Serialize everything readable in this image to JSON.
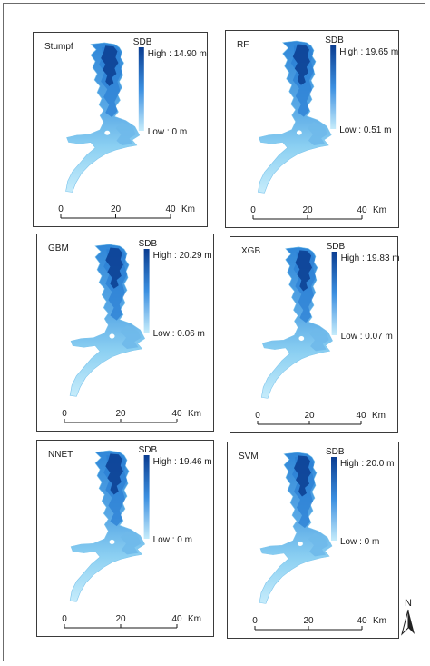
{
  "legend_title": "SDB",
  "units": "Km",
  "scale_ticks": [
    "0",
    "20",
    "40"
  ],
  "north_label": "N",
  "colors": {
    "deep": "#0a3d91",
    "mid": "#2f86d8",
    "shallow": "#8cd0f2",
    "lightest": "#c6ecfb"
  },
  "panels": [
    {
      "id": "stumpf",
      "title": "Stumpf",
      "high": "High : 14.90 m",
      "low": "Low : 0 m",
      "depth_max": 14.9,
      "depth_min": 0
    },
    {
      "id": "rf",
      "title": "RF",
      "high": "High : 19.65 m",
      "low": "Low : 0.51 m",
      "depth_max": 19.65,
      "depth_min": 0.51
    },
    {
      "id": "gbm",
      "title": "GBM",
      "high": "High : 20.29 m",
      "low": "Low : 0.06 m",
      "depth_max": 20.29,
      "depth_min": 0.06
    },
    {
      "id": "xgb",
      "title": "XGB",
      "high": "High : 19.83 m",
      "low": "Low : 0.07 m",
      "depth_max": 19.83,
      "depth_min": 0.07
    },
    {
      "id": "nnet",
      "title": "NNET",
      "high": "High : 19.46 m",
      "low": "Low : 0 m",
      "depth_max": 19.46,
      "depth_min": 0
    },
    {
      "id": "svm",
      "title": "SVM",
      "high": "High : 20.0 m",
      "low": "Low : 0 m",
      "depth_max": 20.0,
      "depth_min": 0
    }
  ]
}
